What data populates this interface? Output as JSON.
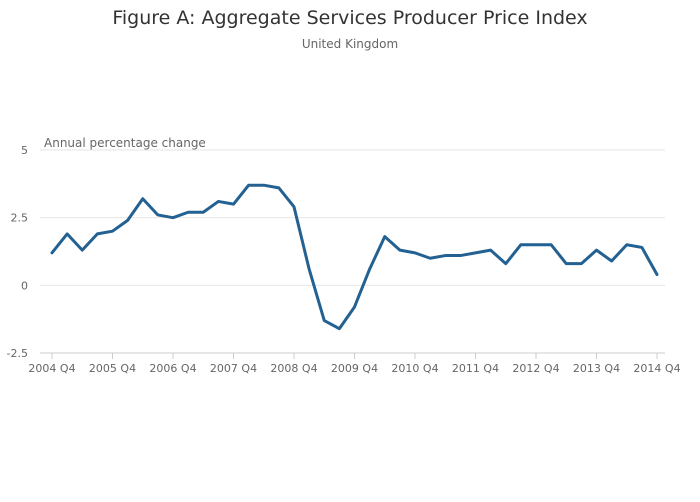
{
  "colors": {
    "series": "#236192"
  },
  "chart_data": {
    "type": "line",
    "title": "Figure A: Aggregate Services Producer Price Index",
    "subtitle": "United Kingdom",
    "ylabel": "Annual percentage change",
    "xlabel": "",
    "ylim": [
      -2.5,
      5
    ],
    "yticks": [
      {
        "value": 5,
        "label": "5"
      },
      {
        "value": 2.5,
        "label": "2.5"
      },
      {
        "value": 0,
        "label": "0"
      },
      {
        "value": -2.5,
        "label": "-2.5"
      }
    ],
    "xticks": [
      {
        "index": 0,
        "label": "2004 Q4"
      },
      {
        "index": 4,
        "label": "2005 Q4"
      },
      {
        "index": 8,
        "label": "2006 Q4"
      },
      {
        "index": 12,
        "label": "2007 Q4"
      },
      {
        "index": 16,
        "label": "2008 Q4"
      },
      {
        "index": 20,
        "label": "2009 Q4"
      },
      {
        "index": 24,
        "label": "2010 Q4"
      },
      {
        "index": 28,
        "label": "2011 Q4"
      },
      {
        "index": 32,
        "label": "2012 Q4"
      },
      {
        "index": 36,
        "label": "2013 Q4"
      },
      {
        "index": 40,
        "label": "2014 Q4"
      }
    ],
    "grid": true,
    "legend": "none",
    "categories": [
      "2004 Q4",
      "2005 Q1",
      "2005 Q2",
      "2005 Q3",
      "2005 Q4",
      "2006 Q1",
      "2006 Q2",
      "2006 Q3",
      "2006 Q4",
      "2007 Q1",
      "2007 Q2",
      "2007 Q3",
      "2007 Q4",
      "2008 Q1",
      "2008 Q2",
      "2008 Q3",
      "2008 Q4",
      "2009 Q1",
      "2009 Q2",
      "2009 Q3",
      "2009 Q4",
      "2010 Q1",
      "2010 Q2",
      "2010 Q3",
      "2010 Q4",
      "2011 Q1",
      "2011 Q2",
      "2011 Q3",
      "2011 Q4",
      "2012 Q1",
      "2012 Q2",
      "2012 Q3",
      "2012 Q4",
      "2013 Q1",
      "2013 Q2",
      "2013 Q3",
      "2013 Q4",
      "2014 Q1",
      "2014 Q2",
      "2014 Q3",
      "2014 Q4"
    ],
    "series": [
      {
        "values": [
          1.2,
          1.9,
          1.3,
          1.9,
          2.0,
          2.4,
          3.2,
          2.6,
          2.5,
          2.7,
          2.7,
          3.1,
          3.0,
          3.7,
          3.7,
          3.6,
          2.9,
          0.6,
          -1.3,
          -1.6,
          -0.8,
          0.6,
          1.8,
          1.3,
          1.2,
          1.0,
          1.1,
          1.1,
          1.2,
          1.3,
          0.8,
          1.5,
          1.5,
          1.5,
          0.8,
          0.8,
          1.3,
          0.9,
          1.5,
          1.4,
          0.4
        ]
      }
    ]
  }
}
